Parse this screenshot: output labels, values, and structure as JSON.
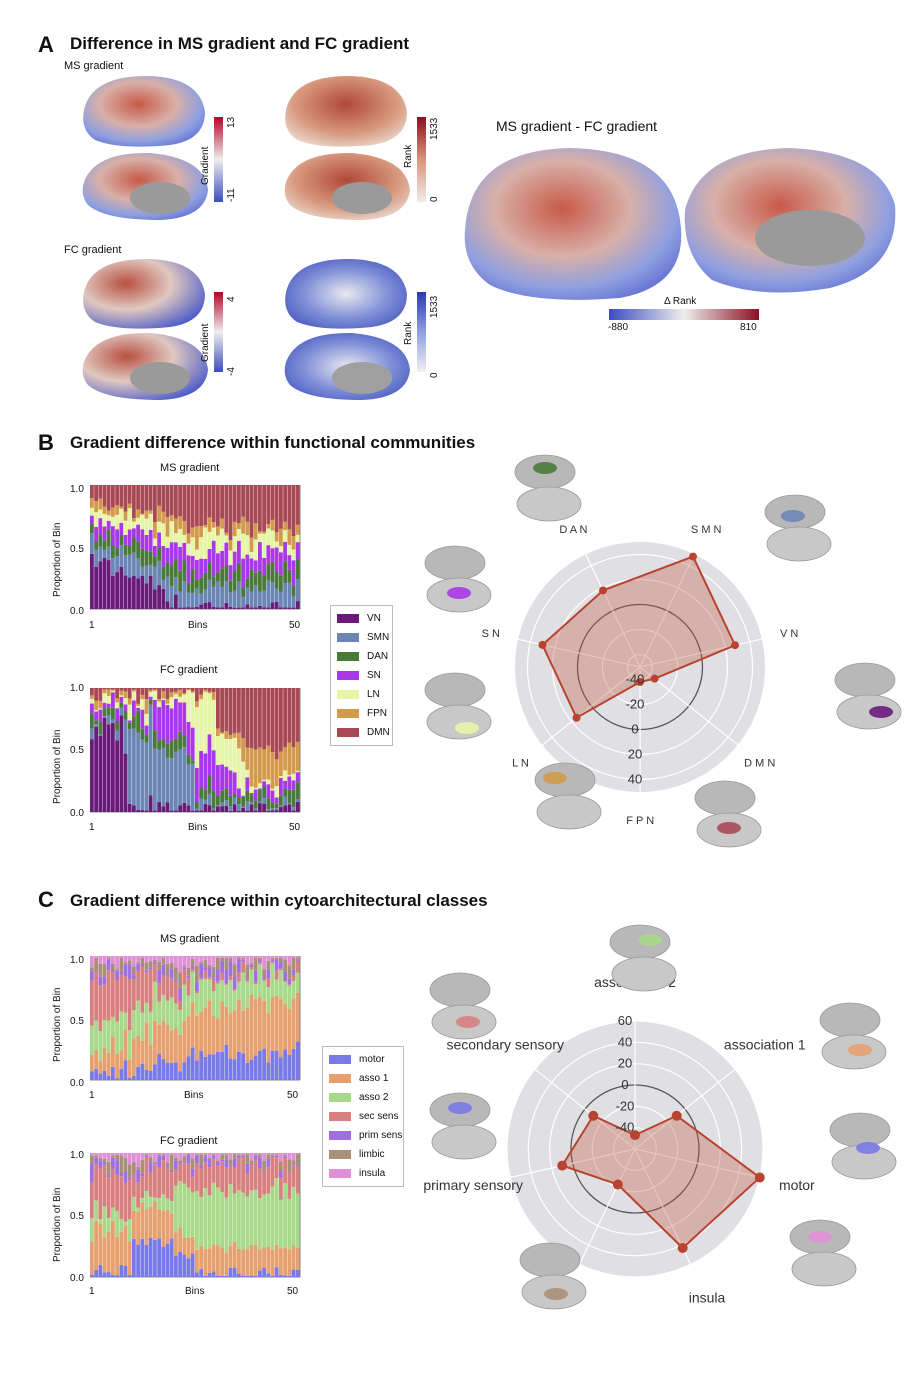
{
  "panelA": {
    "letter": "A",
    "title": "Difference in MS gradient and FC gradient",
    "ms_label": "MS gradient",
    "fc_label": "FC gradient",
    "ms_cbar_grad": {
      "label": "Gradient",
      "max": "13",
      "min": "-11"
    },
    "ms_cbar_rank": {
      "label": "Rank",
      "max": "1533",
      "min": "0"
    },
    "fc_cbar_grad": {
      "label": "Gradient",
      "max": "4",
      "min": "-4"
    },
    "fc_cbar_rank": {
      "label": "Rank",
      "max": "1533",
      "min": "0"
    },
    "diff_title": "MS gradient - FC gradient",
    "diff_cbar": {
      "label": "Δ Rank",
      "min": "-880",
      "max": "810"
    },
    "colors": {
      "blue": "#3b4cc0",
      "white": "#f2f2f2",
      "red": "#b40426"
    }
  },
  "panelB": {
    "letter": "B",
    "title": "Gradient difference within functional communities",
    "ms_title": "MS gradient",
    "fc_title": "FC gradient",
    "ylabel": "Proportion of Bin",
    "xlabel": "Bins",
    "xtick_start": "1",
    "xtick_end": "50",
    "yticks": [
      "1.0",
      "0.5",
      "0.0"
    ],
    "legend": [
      {
        "name": "VN",
        "color": "#6a1b7a"
      },
      {
        "name": "SMN",
        "color": "#6b86b5"
      },
      {
        "name": "DAN",
        "color": "#4a7a3a"
      },
      {
        "name": "SN",
        "color": "#a838e8"
      },
      {
        "name": "LN",
        "color": "#e6f5a6"
      },
      {
        "name": "FPN",
        "color": "#d29a4a"
      },
      {
        "name": "DMN",
        "color": "#a84a55"
      }
    ],
    "radar_axes": [
      "D A N",
      "S M N",
      "V N",
      "D M N",
      "F P N",
      "L N",
      "S N"
    ],
    "radar_ticks": [
      "-40",
      "-20",
      "0",
      "20",
      "40"
    ]
  },
  "panelC": {
    "letter": "C",
    "title": "Gradient difference within cytoarchitectural classes",
    "ms_title": "MS gradient",
    "fc_title": "FC gradient",
    "ylabel": "Proportion of Bin",
    "ms_xlabel": "Bins",
    "fc_xlabel": "Bins",
    "xtick_start": "1",
    "xtick_end": "50",
    "yticks": [
      "1.0",
      "0.5",
      "0.0"
    ],
    "legend": [
      {
        "name": "motor",
        "color": "#7a7ae6"
      },
      {
        "name": "asso 1",
        "color": "#e6a070"
      },
      {
        "name": "asso 2",
        "color": "#a8d88a"
      },
      {
        "name": "sec sens",
        "color": "#d88080"
      },
      {
        "name": "prim sens",
        "color": "#a070e0"
      },
      {
        "name": "limbic",
        "color": "#a89078"
      },
      {
        "name": "insula",
        "color": "#e090d8"
      }
    ],
    "radar_axes": [
      "association 2",
      "association 1",
      "motor",
      "insula",
      "limbic",
      "primary sensory",
      "secondary sensory"
    ],
    "radar_ticks": [
      "60",
      "40",
      "20",
      "0",
      "-20",
      "-40"
    ]
  },
  "chart_data": [
    {
      "type": "radar",
      "title": "",
      "categories": [
        "D A N",
        "S M N",
        "V N",
        "D M N",
        "F P N",
        "L N",
        "S N"
      ],
      "values": [
        18,
        48,
        28,
        -35,
        -38,
        15,
        30
      ],
      "range": [
        -50,
        50
      ],
      "ticks": [
        "-40",
        "-20",
        "0",
        "20",
        "40"
      ]
    },
    {
      "type": "radar",
      "title": "",
      "categories": [
        "association 2",
        "association 1",
        "motor",
        "insula",
        "limbic",
        "primary sensory",
        "secondary sensory"
      ],
      "values": [
        -47,
        -10,
        60,
        43,
        -23,
        10,
        -10
      ],
      "range": [
        -60,
        60
      ],
      "ticks": [
        "60",
        "40",
        "20",
        "0",
        "-20",
        "-40"
      ]
    }
  ]
}
